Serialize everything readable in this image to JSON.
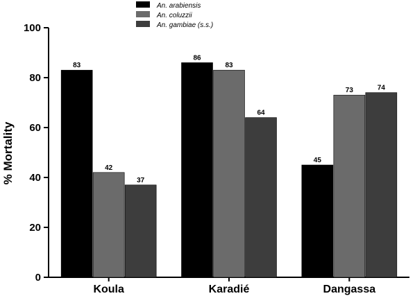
{
  "chart_data": {
    "type": "bar",
    "title": "",
    "xlabel": "",
    "ylabel": "% Mortality",
    "ylim": [
      0,
      100
    ],
    "yticks": [
      0,
      20,
      40,
      60,
      80,
      100
    ],
    "categories": [
      "Koula",
      "Karadié",
      "Dangassa"
    ],
    "series": [
      {
        "name": "An. arabiensis",
        "values": [
          83,
          86,
          45
        ],
        "color": "#000000"
      },
      {
        "name": "An. coluzzii",
        "values": [
          42,
          83,
          73
        ],
        "color": "#6b6b6b"
      },
      {
        "name": "An. gambiae (s.s.)",
        "values": [
          37,
          64,
          74
        ],
        "color": "#3d3d3d"
      }
    ],
    "data_labels": true,
    "grid": false,
    "legend_position": "top-center"
  }
}
